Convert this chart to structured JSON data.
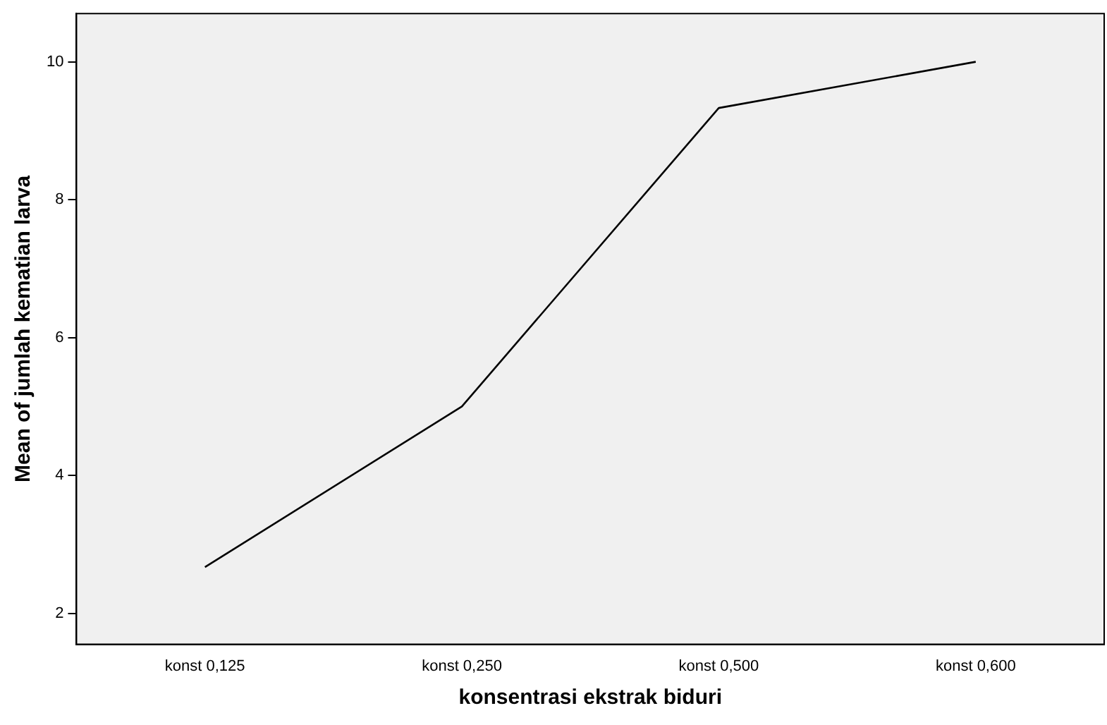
{
  "chart_data": {
    "type": "line",
    "xlabel": "konsentrasi ekstrak biduri",
    "ylabel": "Mean of jumlah kematian larva",
    "categories": [
      "konst 0,125",
      "konst 0,250",
      "konst 0,500",
      "konst 0,600"
    ],
    "series": [
      {
        "color": "#000000",
        "values": [
          2.67,
          5.0,
          9.33,
          10.0
        ]
      }
    ],
    "ylim": [
      1.55,
      10.7
    ],
    "yticks": [
      2,
      4,
      6,
      8,
      10
    ],
    "grid": false,
    "legend": false,
    "marker": "none",
    "line_style": "solid"
  }
}
